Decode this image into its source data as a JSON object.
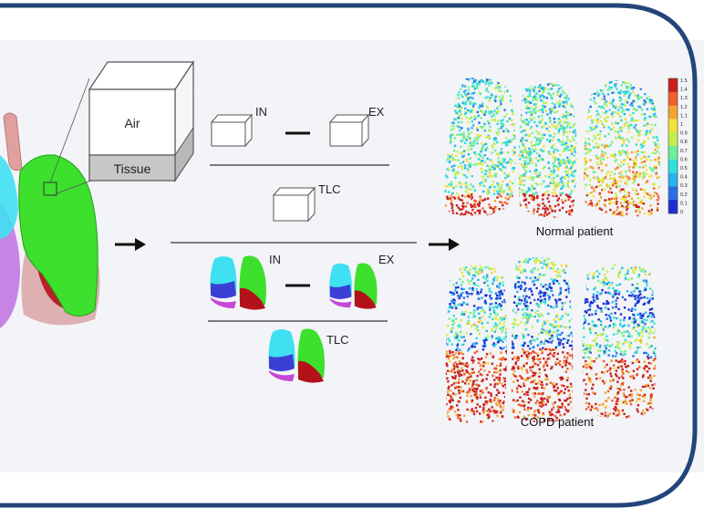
{
  "cube": {
    "air_label": "Air",
    "tissue_label": "Tissue"
  },
  "formula_top": {
    "in_label": "IN",
    "ex_label": "EX",
    "tlc_label": "TLC"
  },
  "formula_bottom": {
    "in_label": "IN",
    "ex_label": "EX",
    "tlc_label": "TLC"
  },
  "results": {
    "normal_label": "Normal patient",
    "copd_label": "COPD patient"
  },
  "colorbar": {
    "ticks": [
      "1.5",
      "1.4",
      "1.3",
      "1.2",
      "1.1",
      "1",
      "0.9",
      "0.8",
      "0.7",
      "0.6",
      "0.5",
      "0.4",
      "0.3",
      "0.2",
      "0.1",
      "0"
    ],
    "colors": [
      "#1d2fd0",
      "#2a6ee8",
      "#29b2ee",
      "#2fe0d8",
      "#6ef09a",
      "#c2f04a",
      "#f2e23a",
      "#f6a331",
      "#ef5e2b",
      "#c91e1e"
    ]
  },
  "lobe_colors": {
    "right_upper": "#3fe0f2",
    "right_middle": "#3b3fd6",
    "right_lower": "#c646d8",
    "left_upper": "#3de02d",
    "left_lower": "#b3121b"
  }
}
